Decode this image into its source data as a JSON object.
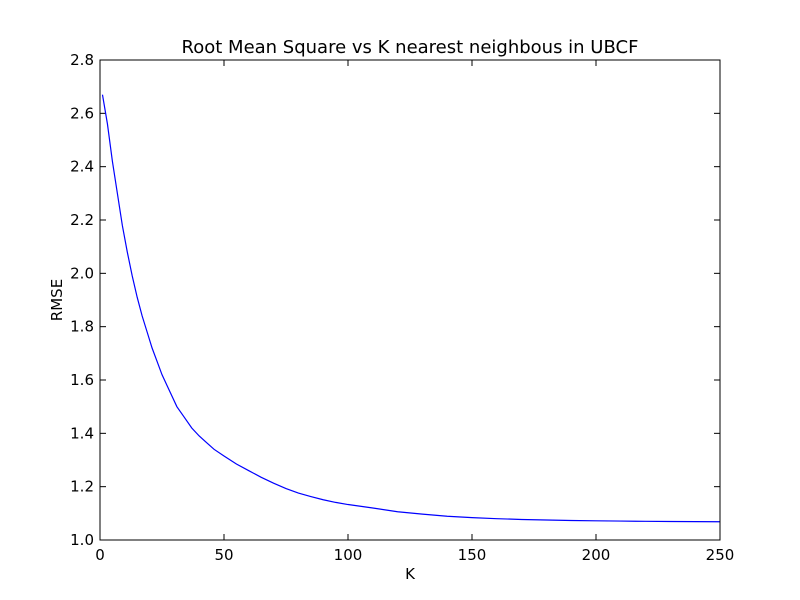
{
  "chart_data": {
    "type": "line",
    "title": "Root Mean Square vs K nearest neighbous in UBCF",
    "xlabel": "K",
    "ylabel": "RMSE",
    "xlim": [
      0,
      250
    ],
    "ylim": [
      1.0,
      2.8
    ],
    "xticks": [
      0,
      50,
      100,
      150,
      200,
      250
    ],
    "yticks": [
      1.0,
      1.2,
      1.4,
      1.6,
      1.8,
      2.0,
      2.2,
      2.4,
      2.6,
      2.8
    ],
    "grid": false,
    "legend": "none",
    "series": [
      {
        "color": "#0000ff",
        "x": [
          1,
          3,
          5,
          7,
          9,
          11,
          13,
          15,
          17,
          19,
          21,
          23,
          25,
          27,
          29,
          31,
          34,
          37,
          40,
          43,
          46,
          50,
          55,
          60,
          65,
          70,
          75,
          80,
          85,
          90,
          95,
          100,
          110,
          120,
          130,
          140,
          150,
          160,
          170,
          180,
          190,
          200,
          210,
          220,
          230,
          240,
          250
        ],
        "y": [
          2.67,
          2.56,
          2.42,
          2.3,
          2.18,
          2.08,
          1.99,
          1.91,
          1.84,
          1.78,
          1.72,
          1.67,
          1.62,
          1.58,
          1.54,
          1.5,
          1.46,
          1.42,
          1.39,
          1.365,
          1.34,
          1.315,
          1.285,
          1.26,
          1.235,
          1.213,
          1.193,
          1.176,
          1.163,
          1.151,
          1.141,
          1.133,
          1.12,
          1.106,
          1.097,
          1.089,
          1.084,
          1.08,
          1.077,
          1.075,
          1.073,
          1.072,
          1.071,
          1.07,
          1.0695,
          1.069,
          1.0685
        ]
      }
    ]
  }
}
